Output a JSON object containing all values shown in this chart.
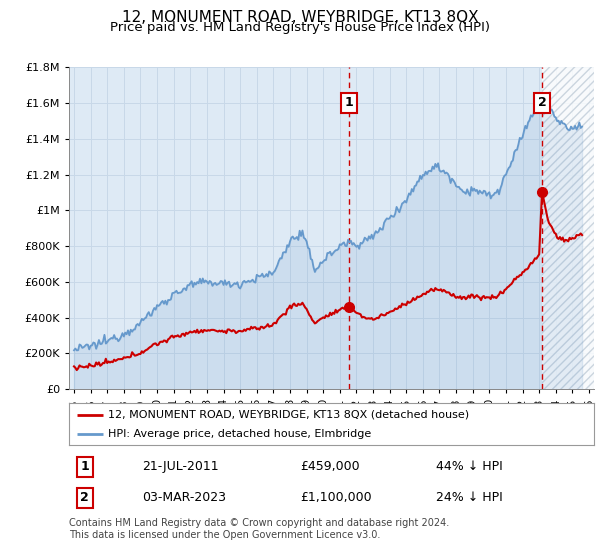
{
  "title": "12, MONUMENT ROAD, WEYBRIDGE, KT13 8QX",
  "subtitle": "Price paid vs. HM Land Registry's House Price Index (HPI)",
  "title_fontsize": 11,
  "subtitle_fontsize": 9.5,
  "ylim": [
    0,
    1800000
  ],
  "yticks": [
    0,
    200000,
    400000,
    600000,
    800000,
    1000000,
    1200000,
    1400000,
    1600000,
    1800000
  ],
  "ytick_labels": [
    "£0",
    "£200K",
    "£400K",
    "£600K",
    "£800K",
    "£1M",
    "£1.2M",
    "£1.4M",
    "£1.6M",
    "£1.8M"
  ],
  "xlim_start": 1994.7,
  "xlim_end": 2026.3,
  "sale1_year": 2011.55,
  "sale1_price": 459000,
  "sale1_label": "1",
  "sale1_date": "21-JUL-2011",
  "sale1_amount": "£459,000",
  "sale1_pct": "44% ↓ HPI",
  "sale2_year": 2023.17,
  "sale2_price": 1100000,
  "sale2_label": "2",
  "sale2_date": "03-MAR-2023",
  "sale2_amount": "£1,100,000",
  "sale2_pct": "24% ↓ HPI",
  "red_color": "#cc0000",
  "blue_color": "#6699cc",
  "grid_color": "#c8d8e8",
  "background_color": "#deeaf5",
  "hatch_color": "#c0ccd8",
  "legend_label_red": "12, MONUMENT ROAD, WEYBRIDGE, KT13 8QX (detached house)",
  "legend_label_blue": "HPI: Average price, detached house, Elmbridge",
  "footer": "Contains HM Land Registry data © Crown copyright and database right 2024.\nThis data is licensed under the Open Government Licence v3.0."
}
